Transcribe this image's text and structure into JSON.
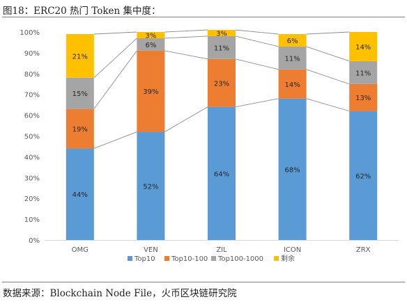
{
  "title": "图18：ERC20 热门 Token 集中度：",
  "source": "数据来源：Blockchain Node File，火币区块链研究院",
  "colors": {
    "Top10": "#5b9bd5",
    "Top10-100": "#ed7d31",
    "Top100-1000": "#a5a5a5",
    "剩余": "#ffc000",
    "connector": "#8c8c8c",
    "grid": "#d9d9d9",
    "axis_text": "#595959"
  },
  "chart_data": {
    "type": "bar",
    "stacked": true,
    "categories": [
      "OMG",
      "VEN",
      "ZIL",
      "ICON",
      "ZRX"
    ],
    "series": [
      {
        "name": "Top10",
        "values": [
          44,
          52,
          64,
          68,
          62
        ],
        "labels": [
          "44%",
          "52%",
          "64%",
          "68%",
          "62%"
        ]
      },
      {
        "name": "Top10-100",
        "values": [
          19,
          39,
          23,
          14,
          13
        ],
        "labels": [
          "19%",
          "39%",
          "23%",
          "14%",
          "13%"
        ]
      },
      {
        "name": "Top100-1000",
        "values": [
          15,
          6,
          11,
          11,
          11
        ],
        "labels": [
          "15%",
          "6%",
          "11%",
          "11%",
          "11%"
        ]
      },
      {
        "name": "剩余",
        "values": [
          21,
          3,
          3,
          6,
          14
        ],
        "labels": [
          "21%",
          "3%",
          "3%",
          "6%",
          "14%"
        ]
      }
    ],
    "yticks": [
      "0%",
      "10%",
      "20%",
      "30%",
      "40%",
      "50%",
      "60%",
      "70%",
      "80%",
      "90%",
      "100%"
    ],
    "ylim": [
      0,
      100
    ],
    "series_lines": true,
    "grid": false,
    "legend_position": "bottom"
  }
}
